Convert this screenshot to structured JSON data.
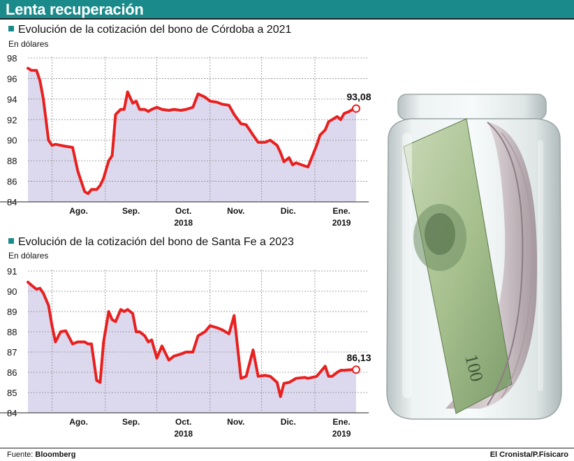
{
  "header": {
    "title": "Lenta recuperación"
  },
  "chart_data": [
    {
      "type": "area",
      "title": "Evolución de la cotización del bono de Córdoba a 2021",
      "ylabel": "En dólares",
      "ylim": [
        84,
        98
      ],
      "yticks": [
        84,
        86,
        88,
        90,
        92,
        94,
        96,
        98
      ],
      "month_labels": [
        "Ago.",
        "Sep.",
        "Oct.",
        "Nov.",
        "Dic.",
        "Ene."
      ],
      "year_labels": [
        "2018",
        "2019"
      ],
      "last_value_label": "93,08",
      "x_range": [
        "2018-07-18",
        "2019-01-25"
      ],
      "series": [
        {
          "x": [
            "2018-07-18",
            "2018-07-20",
            "2018-07-23",
            "2018-07-25",
            "2018-07-27",
            "2018-07-30",
            "2018-08-01",
            "2018-08-03",
            "2018-08-06",
            "2018-08-09",
            "2018-08-13",
            "2018-08-16",
            "2018-08-20",
            "2018-08-22",
            "2018-08-24",
            "2018-08-27",
            "2018-08-29",
            "2018-08-31",
            "2018-09-03",
            "2018-09-05",
            "2018-09-07",
            "2018-09-10",
            "2018-09-12",
            "2018-09-14",
            "2018-09-17",
            "2018-09-19",
            "2018-09-21",
            "2018-09-24",
            "2018-09-26",
            "2018-09-28",
            "2018-10-01",
            "2018-10-04",
            "2018-10-08",
            "2018-10-11",
            "2018-10-15",
            "2018-10-18",
            "2018-10-22",
            "2018-10-25",
            "2018-10-29",
            "2018-11-01",
            "2018-11-05",
            "2018-11-08",
            "2018-11-12",
            "2018-11-15",
            "2018-11-19",
            "2018-11-22",
            "2018-11-26",
            "2018-11-29",
            "2018-12-03",
            "2018-12-06",
            "2018-12-10",
            "2018-12-12",
            "2018-12-14",
            "2018-12-17",
            "2018-12-19",
            "2018-12-21",
            "2018-12-26",
            "2018-12-28",
            "2019-01-02",
            "2019-01-04",
            "2019-01-07",
            "2019-01-09",
            "2019-01-11",
            "2019-01-14",
            "2019-01-16",
            "2019-01-18",
            "2019-01-21",
            "2019-01-23",
            "2019-01-25"
          ],
          "y": [
            97.0,
            96.8,
            96.8,
            95.8,
            94.0,
            90.0,
            89.5,
            89.6,
            89.5,
            89.4,
            89.3,
            87.0,
            85.0,
            84.8,
            85.2,
            85.2,
            85.6,
            86.3,
            88.0,
            88.5,
            92.5,
            93.0,
            93.0,
            94.7,
            93.6,
            93.8,
            93.0,
            93.0,
            92.8,
            93.0,
            93.2,
            93.0,
            92.9,
            93.0,
            92.9,
            93.0,
            93.2,
            94.5,
            94.2,
            93.8,
            93.7,
            93.5,
            93.4,
            92.5,
            91.6,
            91.5,
            90.5,
            89.8,
            89.8,
            90.0,
            89.5,
            88.8,
            87.9,
            88.3,
            87.6,
            87.8,
            87.5,
            87.4,
            89.5,
            90.5,
            91.0,
            91.8,
            92.0,
            92.3,
            92.0,
            92.6,
            92.8,
            93.0,
            93.08
          ]
        }
      ]
    },
    {
      "type": "area",
      "title": "Evolución de la cotización del bono de Santa Fe a 2023",
      "ylabel": "En dólares",
      "ylim": [
        84,
        91
      ],
      "yticks": [
        84,
        85,
        86,
        87,
        88,
        89,
        90,
        91
      ],
      "month_labels": [
        "Ago.",
        "Sep.",
        "Oct.",
        "Nov.",
        "Dic.",
        "Ene."
      ],
      "year_labels": [
        "2018",
        "2019"
      ],
      "last_value_label": "86,13",
      "x_range": [
        "2018-07-18",
        "2019-01-25"
      ],
      "series": [
        {
          "x": [
            "2018-07-18",
            "2018-07-20",
            "2018-07-23",
            "2018-07-25",
            "2018-07-27",
            "2018-07-30",
            "2018-08-01",
            "2018-08-03",
            "2018-08-06",
            "2018-08-09",
            "2018-08-13",
            "2018-08-16",
            "2018-08-20",
            "2018-08-22",
            "2018-08-24",
            "2018-08-27",
            "2018-08-29",
            "2018-08-31",
            "2018-09-03",
            "2018-09-05",
            "2018-09-07",
            "2018-09-10",
            "2018-09-12",
            "2018-09-14",
            "2018-09-17",
            "2018-09-19",
            "2018-09-21",
            "2018-09-24",
            "2018-09-26",
            "2018-09-28",
            "2018-10-01",
            "2018-10-04",
            "2018-10-08",
            "2018-10-11",
            "2018-10-15",
            "2018-10-18",
            "2018-10-22",
            "2018-10-25",
            "2018-10-29",
            "2018-11-01",
            "2018-11-05",
            "2018-11-08",
            "2018-11-12",
            "2018-11-15",
            "2018-11-19",
            "2018-11-22",
            "2018-11-26",
            "2018-11-29",
            "2018-12-03",
            "2018-12-06",
            "2018-12-10",
            "2018-12-12",
            "2018-12-14",
            "2018-12-17",
            "2018-12-19",
            "2018-12-21",
            "2018-12-26",
            "2018-12-28",
            "2019-01-02",
            "2019-01-04",
            "2019-01-07",
            "2019-01-09",
            "2019-01-11",
            "2019-01-14",
            "2019-01-16",
            "2019-01-18",
            "2019-01-21",
            "2019-01-23",
            "2019-01-25"
          ],
          "y": [
            90.45,
            90.3,
            90.1,
            90.15,
            89.9,
            89.3,
            88.3,
            87.5,
            88.0,
            88.05,
            87.4,
            87.5,
            87.5,
            87.4,
            87.4,
            85.6,
            85.5,
            87.5,
            89.0,
            88.6,
            88.5,
            89.1,
            89.0,
            89.1,
            88.9,
            88.0,
            88.0,
            87.8,
            87.5,
            87.6,
            86.7,
            87.3,
            86.6,
            86.8,
            86.9,
            87.0,
            87.0,
            87.8,
            88.0,
            88.3,
            88.2,
            88.1,
            87.9,
            88.8,
            85.7,
            85.8,
            87.1,
            85.8,
            85.85,
            85.8,
            85.5,
            84.8,
            85.45,
            85.5,
            85.6,
            85.7,
            85.75,
            85.7,
            85.8,
            86.0,
            86.3,
            85.8,
            85.8,
            86.0,
            86.1,
            86.1,
            86.12,
            86.13,
            86.13
          ]
        }
      ]
    }
  ],
  "footer": {
    "source_prefix": "Fuente:",
    "source": "Bloomberg",
    "credit": "El Cronista/P.Fisicaro"
  },
  "colors": {
    "header": "#1a8a8a",
    "line": "#e8201f",
    "fill": "#dcd9ee",
    "grid": "#8a8a8a"
  }
}
